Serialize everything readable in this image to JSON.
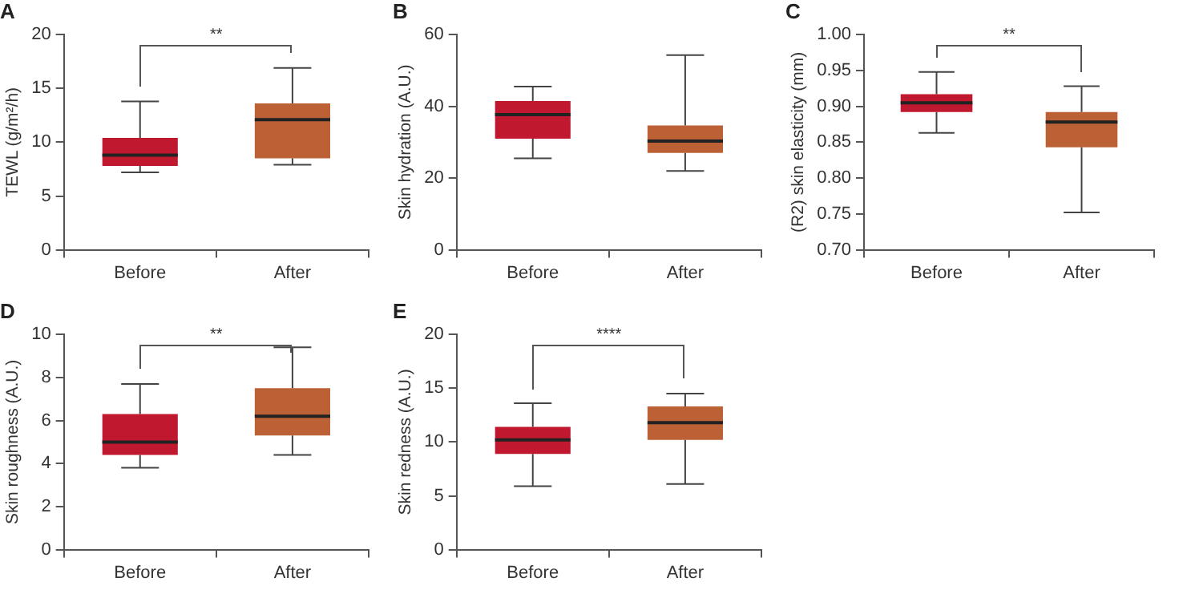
{
  "chart_data": [
    {
      "type": "box",
      "title": "A",
      "ylabel": "TEWL (g/m²/h)",
      "categories": [
        "Before",
        "After"
      ],
      "colors": [
        "#c0182e",
        "#bc6035"
      ],
      "ylim": [
        0,
        20
      ],
      "yticks": [
        0,
        5,
        10,
        15,
        20
      ],
      "annotations": [
        "**"
      ],
      "boxes": [
        {
          "low": 7.2,
          "q1": 7.8,
          "median": 8.8,
          "q3": 10.4,
          "high": 13.8
        },
        {
          "low": 7.9,
          "q1": 8.5,
          "median": 12.1,
          "q3": 13.6,
          "high": 16.9
        }
      ]
    },
    {
      "type": "box",
      "title": "B",
      "ylabel": "Skin hydration (A.U.)",
      "categories": [
        "Before",
        "After"
      ],
      "colors": [
        "#c0182e",
        "#bc6035"
      ],
      "ylim": [
        0,
        60
      ],
      "yticks": [
        0,
        20,
        40,
        60
      ],
      "boxes": [
        {
          "low": 25.5,
          "q1": 31,
          "median": 37.7,
          "q3": 41.5,
          "high": 45.5
        },
        {
          "low": 22,
          "q1": 27,
          "median": 30.3,
          "q3": 34.7,
          "high": 54.3
        }
      ]
    },
    {
      "type": "box",
      "title": "C",
      "ylabel": "(R2) skin elasticity (mm)",
      "categories": [
        "Before",
        "After"
      ],
      "colors": [
        "#c0182e",
        "#bc6035"
      ],
      "ylim": [
        0.7,
        1.0
      ],
      "yticks": [
        {
          "value": 0.7,
          "label": "0.70"
        },
        {
          "value": 0.75,
          "label": "0.75"
        },
        {
          "value": 0.8,
          "label": "0.80"
        },
        {
          "value": 0.85,
          "label": "0.85"
        },
        {
          "value": 0.9,
          "label": "0.90"
        },
        {
          "value": 0.95,
          "label": "0.95"
        },
        {
          "value": 1.0,
          "label": "1.00"
        }
      ],
      "annotations": [
        "**"
      ],
      "boxes": [
        {
          "low": 0.863,
          "q1": 0.892,
          "median": 0.905,
          "q3": 0.917,
          "high": 0.948
        },
        {
          "low": 0.752,
          "q1": 0.843,
          "median": 0.878,
          "q3": 0.892,
          "high": 0.928
        }
      ]
    },
    {
      "type": "box",
      "title": "D",
      "ylabel": "Skin roughness (A.U.)",
      "categories": [
        "Before",
        "After"
      ],
      "colors": [
        "#c0182e",
        "#bc6035"
      ],
      "ylim": [
        0,
        10
      ],
      "yticks": [
        0,
        2,
        4,
        6,
        8,
        10
      ],
      "annotations": [
        "**"
      ],
      "boxes": [
        {
          "low": 3.8,
          "q1": 4.4,
          "median": 5.0,
          "q3": 6.3,
          "high": 7.7
        },
        {
          "low": 4.4,
          "q1": 5.3,
          "median": 6.2,
          "q3": 7.5,
          "high": 9.4
        }
      ]
    },
    {
      "type": "box",
      "title": "E",
      "ylabel": "Skin redness (A.U.)",
      "categories": [
        "Before",
        "After"
      ],
      "colors": [
        "#c0182e",
        "#bc6035"
      ],
      "ylim": [
        0,
        20
      ],
      "yticks": [
        0,
        5,
        10,
        15,
        20
      ],
      "annotations": [
        "****"
      ],
      "boxes": [
        {
          "low": 5.9,
          "q1": 8.9,
          "median": 10.2,
          "q3": 11.4,
          "high": 13.6
        },
        {
          "low": 6.1,
          "q1": 10.2,
          "median": 11.8,
          "q3": 13.3,
          "high": 14.5
        }
      ]
    }
  ]
}
